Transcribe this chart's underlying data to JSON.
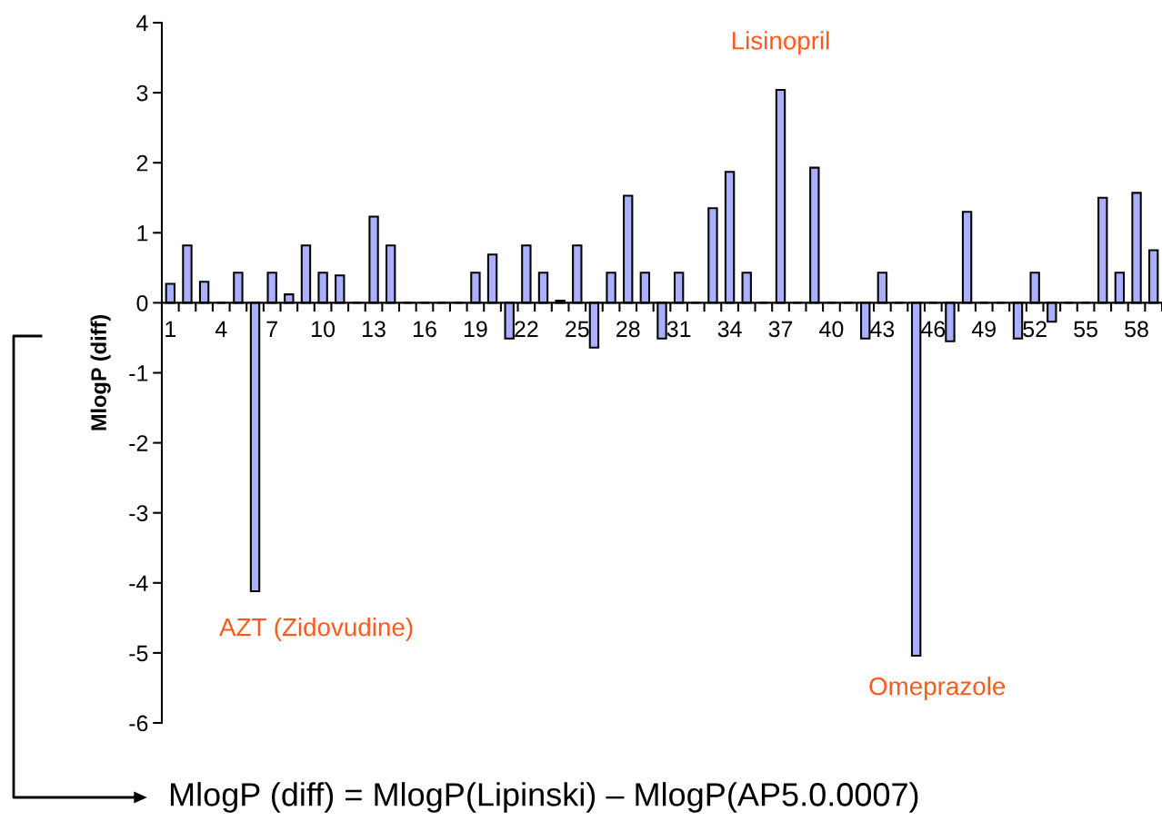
{
  "chart_data": {
    "type": "bar",
    "ylabel": "MlogP (diff)",
    "categories": [
      "1",
      null,
      null,
      "4",
      null,
      null,
      "7",
      null,
      null,
      "10",
      null,
      null,
      "13",
      null,
      null,
      "16",
      null,
      null,
      "19",
      null,
      null,
      "22",
      null,
      null,
      "25",
      null,
      null,
      "28",
      null,
      null,
      "31",
      null,
      null,
      "34",
      null,
      null,
      "37",
      null,
      null,
      "40",
      null,
      null,
      "43",
      null,
      null,
      "46",
      null,
      null,
      "49",
      null,
      null,
      "52",
      null,
      null,
      "55",
      null,
      null,
      "58",
      null
    ],
    "values": [
      0.27,
      0.82,
      0.3,
      0,
      0.43,
      -4.12,
      0.43,
      0.12,
      0.82,
      0.43,
      0.39,
      0,
      1.23,
      0.82,
      0,
      0,
      0,
      0,
      0.43,
      0.69,
      -0.51,
      0.82,
      0.43,
      0.03,
      0.82,
      -0.64,
      0.43,
      1.53,
      0.43,
      -0.51,
      0.43,
      0,
      1.35,
      1.87,
      0.43,
      0,
      3.04,
      0,
      1.93,
      0,
      0,
      -0.51,
      0.43,
      0,
      -5.04,
      0,
      -0.55,
      1.3,
      0,
      0,
      -0.51,
      0.43,
      -0.27,
      0,
      0,
      1.5,
      0.43,
      1.57,
      0.75
    ],
    "color": "#aab0ff",
    "ylim": [
      -6,
      4
    ],
    "yticks": [
      -6,
      -5,
      -4,
      -3,
      -2,
      -1,
      0,
      1,
      2,
      3,
      4
    ],
    "grid": false,
    "legend": false,
    "annotations": [
      {
        "text": "Lisinopril",
        "x": "37",
        "y": 3.04
      },
      "AZT (Zidovudine)",
      "Omeprazole",
      "MlogP (diff) = MlogP(Lipinski) – MlogP(AP5.0.0007)"
    ]
  }
}
